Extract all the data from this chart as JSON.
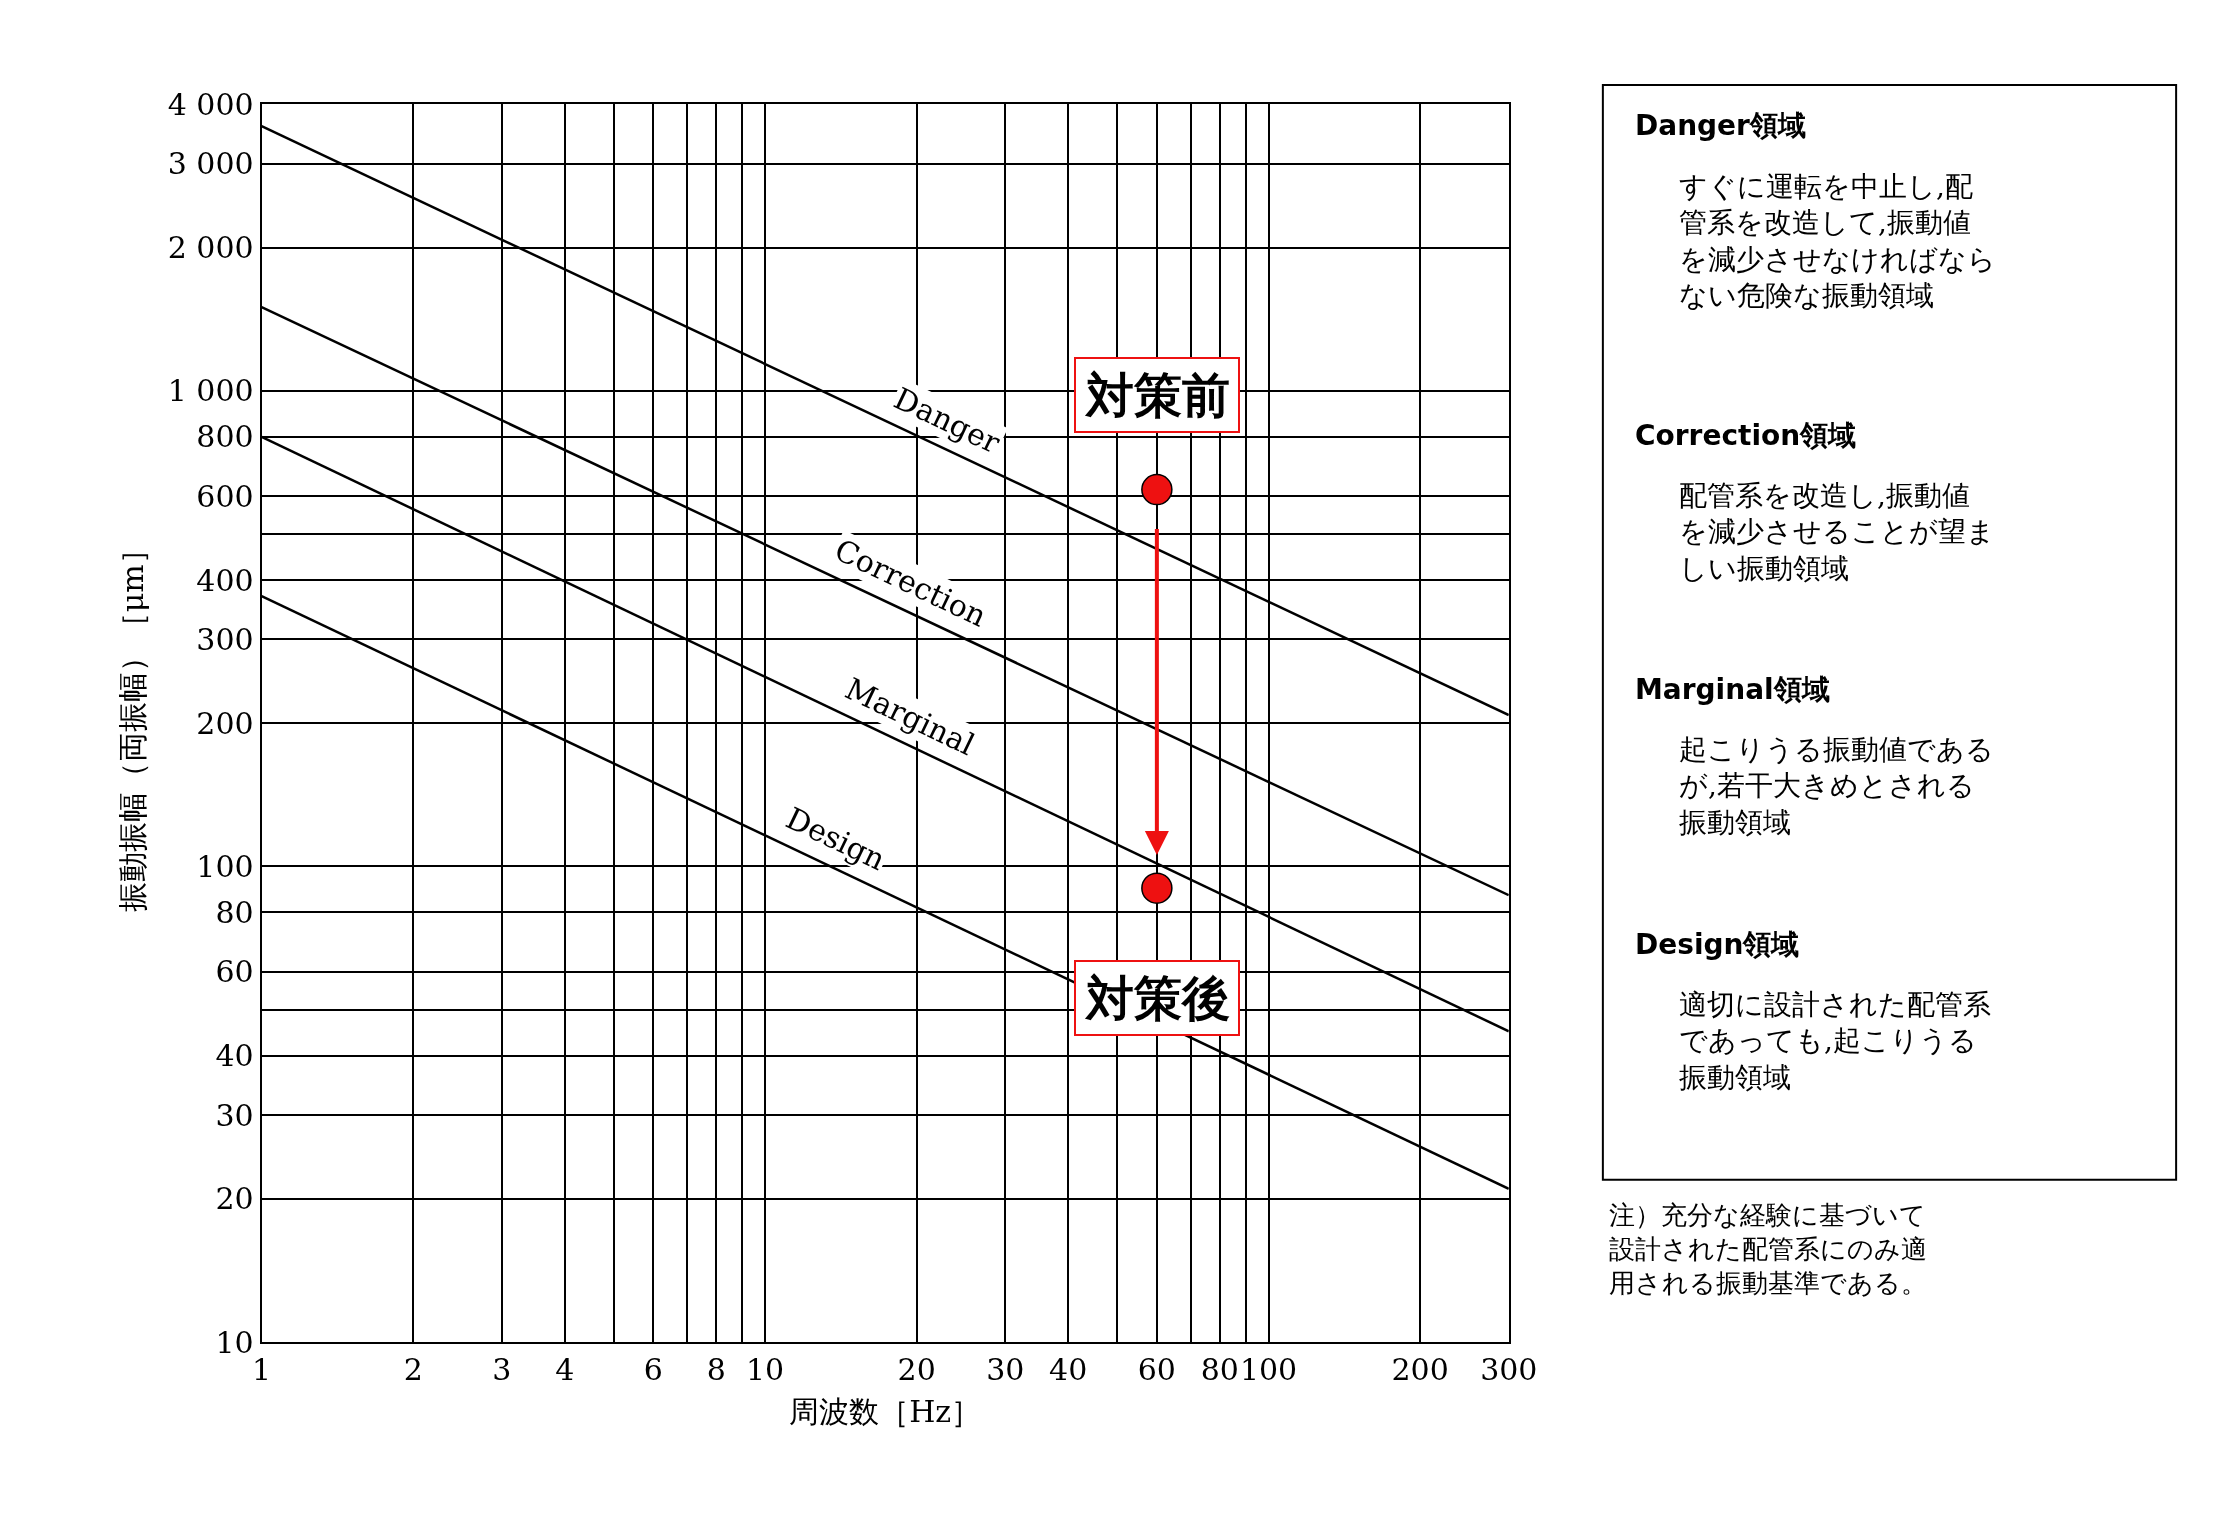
{
  "chart_data": {
    "type": "line",
    "xlabel": "周波数［Hz］",
    "ylabel": "振動振幅（両振幅）［μm］",
    "log": "xy",
    "grid": true,
    "xlim": [
      1,
      300
    ],
    "ylim": [
      10,
      4000
    ],
    "xticks": [
      1,
      2,
      3,
      4,
      {
        "value": 5,
        "label": null
      },
      6,
      {
        "value": 7,
        "label": null
      },
      8,
      {
        "value": 9,
        "label": null
      },
      10,
      20,
      30,
      40,
      {
        "value": 50,
        "label": null
      },
      60,
      {
        "value": 70,
        "label": null
      },
      80,
      {
        "value": 90,
        "label": null
      },
      100,
      200,
      300
    ],
    "yticks": [
      10,
      20,
      30,
      40,
      {
        "value": 50,
        "label": null
      },
      60,
      80,
      100,
      200,
      300,
      400,
      {
        "value": 500,
        "label": null
      },
      600,
      800,
      {
        "value": 1000,
        "label": "1 000"
      },
      {
        "value": 2000,
        "label": "2 000"
      },
      {
        "value": 3000,
        "label": "3 000"
      },
      {
        "value": 4000,
        "label": "4 000"
      }
    ],
    "series": [
      {
        "name": "Danger",
        "color": "#000000",
        "x": [
          1,
          300
        ],
        "values": [
          3600,
          208
        ]
      },
      {
        "name": "Correction",
        "color": "#000000",
        "x": [
          1,
          300
        ],
        "values": [
          1500,
          87
        ]
      },
      {
        "name": "Marginal",
        "color": "#000000",
        "x": [
          1,
          300
        ],
        "values": [
          800,
          45
        ]
      },
      {
        "name": "Design",
        "color": "#000000",
        "x": [
          1,
          300
        ],
        "values": [
          370,
          21
        ]
      },
      {
        "type": "scatter",
        "marker": "circle",
        "color": "#ee1111",
        "x": [
          60,
          60
        ],
        "values": [
          620,
          90
        ]
      }
    ],
    "annotations": [
      {
        "text": "対策前",
        "x": 60,
        "y": 620
      },
      {
        "text": "対策後",
        "x": 60,
        "y": 90
      },
      "Danger領域",
      "すぐに運転を中止し,配管系を改造して,振動値を減少させなければならない危険な振動領域",
      "Correction領域",
      "配管系を改造し,振動値を減少させることが望ましい振動領域",
      "Marginal領域",
      "起こりうる振動値であるが,若干大きめとされる振動領域",
      "Design領域",
      "適切に設計された配管系であっても,起こりうる振動領域",
      "注）充分な経験に基づいて設計された配管系にのみ適用される振動基準である。"
    ]
  }
}
